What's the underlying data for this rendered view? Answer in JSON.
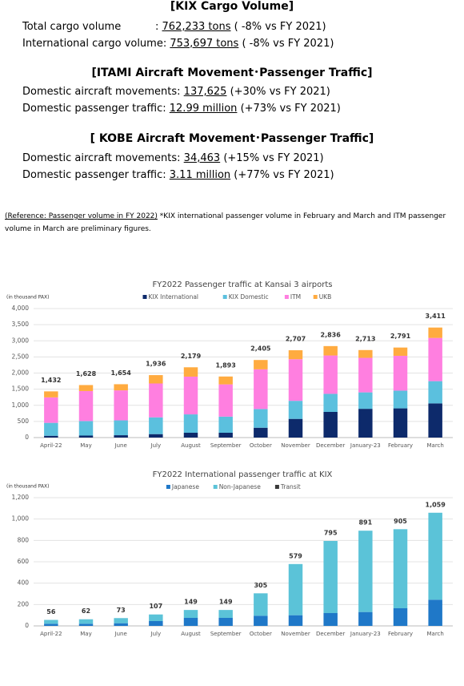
{
  "header": {
    "sections": [
      {
        "title": "[KIX Cargo Volume]",
        "lines": [
          {
            "label": "Total cargo volume",
            "sep": ":",
            "value": "762,233 tons",
            "note": "( -8% vs FY 2021)"
          },
          {
            "label": "International cargo volume:",
            "value": "753,697 tons",
            "note": "( -8% vs FY 2021)"
          }
        ]
      },
      {
        "title": "[ITAMI Aircraft Movement･Passenger Traffic]",
        "lines": [
          {
            "label": "Domestic aircraft movements:",
            "value": "137,625",
            "note": "(+30% vs FY 2021)"
          },
          {
            "label": "Domestic passenger traffic:",
            "value": "12.99 million",
            "note": "(+73% vs FY 2021)"
          }
        ]
      },
      {
        "title": "[ KOBE Aircraft Movement･Passenger Traffic]",
        "lines": [
          {
            "label": "Domestic aircraft movements:",
            "value": "34,463",
            "note": "(+15% vs FY 2021)"
          },
          {
            "label": "Domestic passenger traffic:",
            "value": "3.11 million",
            "note": "(+77% vs FY 2021)"
          }
        ]
      }
    ],
    "reference": "(Reference: Passenger volume in FY 2022)",
    "remark": "*KIX international passenger volume in February and March and ITM passenger volume in March are preliminary figures."
  },
  "chart_data": [
    {
      "type": "bar",
      "stacked": true,
      "title": "FY2022 Passenger traffic at Kansai 3 airports",
      "y_label": "(in thousand PAX)",
      "categories": [
        "April-22",
        "May",
        "June",
        "July",
        "August",
        "September",
        "October",
        "November",
        "December",
        "January-23",
        "February",
        "March"
      ],
      "series": [
        {
          "name": "KIX International",
          "color": "#0d2a6b",
          "values": [
            56,
            62,
            73,
            107,
            149,
            149,
            305,
            579,
            795,
            891,
            905,
            1059
          ]
        },
        {
          "name": "KIX Domestic",
          "color": "#5bc0de",
          "values": [
            400,
            450,
            460,
            520,
            570,
            500,
            580,
            560,
            560,
            510,
            550,
            690
          ]
        },
        {
          "name": "ITM",
          "color": "#ff7fe0",
          "values": [
            790,
            930,
            930,
            1050,
            1170,
            1000,
            1230,
            1290,
            1190,
            1070,
            1080,
            1340
          ]
        },
        {
          "name": "UKB",
          "color": "#ffab40",
          "values": [
            186,
            186,
            191,
            259,
            290,
            244,
            290,
            278,
            291,
            242,
            256,
            322
          ]
        }
      ],
      "totals": {
        "values": [
          1432,
          1628,
          1654,
          1936,
          2179,
          1893,
          2405,
          2707,
          2836,
          2713,
          2791,
          3411
        ],
        "value_labels": [
          "1,432",
          "1,628",
          "1,654",
          "1,936",
          "2,179",
          "1,893",
          "2,405",
          "2,707",
          "2,836",
          "2,713",
          "2,791",
          "3,411"
        ]
      },
      "ylim": [
        0,
        4000
      ],
      "yticks": [
        0,
        500,
        {
          "value": 1000,
          "label": "1,000"
        },
        {
          "value": 1500,
          "label": "1,500"
        },
        {
          "value": 2000,
          "label": "2,000"
        },
        {
          "value": 2500,
          "label": "2,500"
        },
        {
          "value": 3000,
          "label": "3,000"
        },
        {
          "value": 3500,
          "label": "3,500"
        },
        {
          "value": 4000,
          "label": "4,000"
        }
      ],
      "grid": true
    },
    {
      "type": "bar",
      "stacked": true,
      "title": "FY2022 International passenger traffic at KIX",
      "y_label": "(in thousand PAX)",
      "categories": [
        "April-22",
        "May",
        "June",
        "July",
        "August",
        "September",
        "October",
        "November",
        "December",
        "January-23",
        "February",
        "March"
      ],
      "series": [
        {
          "name": "Japanese",
          "color": "#1f78c8",
          "values": [
            20,
            20,
            25,
            45,
            75,
            75,
            95,
            100,
            120,
            130,
            165,
            245
          ]
        },
        {
          "name": "Non-Japanese",
          "color": "#5bc3d8",
          "values": [
            36,
            42,
            48,
            62,
            74,
            74,
            210,
            479,
            675,
            761,
            740,
            814
          ]
        },
        {
          "name": "Transit",
          "color": "#3a3a3a",
          "values": [
            0,
            0,
            0,
            0,
            0,
            0,
            0,
            0,
            0,
            0,
            0,
            0
          ]
        }
      ],
      "totals": {
        "values": [
          56,
          62,
          73,
          107,
          149,
          149,
          305,
          579,
          795,
          891,
          905,
          1059
        ],
        "value_labels": [
          "56",
          "62",
          "73",
          "107",
          "149",
          "149",
          "305",
          "579",
          "795",
          "891",
          "905",
          "1,059"
        ]
      },
      "ylim": [
        0,
        1200
      ],
      "yticks": [
        0,
        200,
        400,
        600,
        800,
        {
          "value": 1000,
          "label": "1,000"
        },
        {
          "value": 1200,
          "label": "1,200"
        }
      ],
      "grid": true
    }
  ]
}
